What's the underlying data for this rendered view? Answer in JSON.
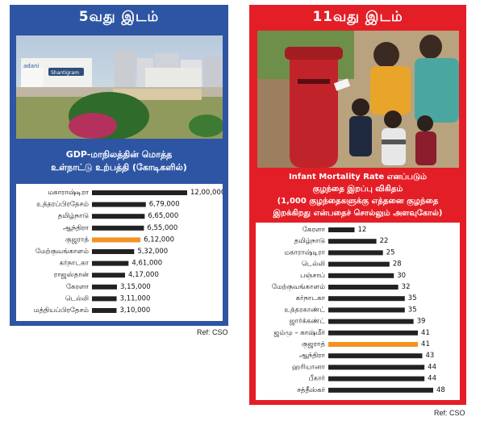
{
  "left": {
    "title": "5வது இடம்",
    "photo_sign": "adani",
    "photo_building_sign": "Shantigram",
    "subtitle_line1": "GDP-மாநிலத்தின் மொத்த",
    "subtitle_line2": "உள்நாட்டு உற்பத்தி (கோடிகளில்)",
    "ref": "Ref: CSO"
  },
  "right": {
    "title": "11வது இடம்",
    "subtitle_line1": "Infant Mortality Rate எனப்படும்",
    "subtitle_line2": "குழந்தை இறப்பு விகிதம்",
    "subtitle_line3": "(1,000 குழந்தைகளுக்கு எத்தனை குழந்தை",
    "subtitle_line4": "இறக்கிறது என்பதைச் சொல்லும் அளவுகோல்)",
    "ref": "Ref: CSO"
  },
  "colors": {
    "left_panel": "#2d55a3",
    "right_panel": "#e31e26",
    "bar": "#222222",
    "highlight_bar": "#f39223"
  },
  "chart_data": [
    {
      "type": "bar",
      "orientation": "horizontal",
      "categories": [
        "மகாராஷ்டிரா",
        "உத்தரப்பிரதேசம்",
        "தமிழ்நாடு",
        "ஆந்திரா",
        "குஜராத்",
        "மேற்குவங்காளம்",
        "கர்நாடகா",
        "ராஜஸ்தான்",
        "கேரளா",
        "டெல்லி",
        "மத்தியப்பிரதேசம்"
      ],
      "values": [
        1200000,
        679000,
        665000,
        655000,
        612000,
        532000,
        461000,
        417000,
        315000,
        311000,
        310000
      ],
      "value_labels": [
        "12,00,000",
        "6,79,000",
        "6,65,000",
        "6,55,000",
        "6,12,000",
        "5,32,000",
        "4,61,000",
        "4,17,000",
        "3,15,000",
        "3,11,000",
        "3,10,000"
      ],
      "highlight": "குஜராத்",
      "xlim": [
        0,
        1200000
      ]
    },
    {
      "type": "bar",
      "orientation": "horizontal",
      "categories": [
        "கேரளா",
        "தமிழ்நாடு",
        "மகாராஷ்டிரா",
        "டெல்லி",
        "பஞ்சாப்",
        "மேற்குவங்காளம்",
        "கர்நாடகா",
        "உத்தரகாண்ட்",
        "ஜார்க்கண்ட்",
        "ஜம்மு – காஷ்மீர்",
        "குஜராத்",
        "ஆந்திரா",
        "ஹரியானா",
        "பீகார்",
        "சத்தீஸ்கர்"
      ],
      "values": [
        12,
        22,
        25,
        28,
        30,
        32,
        35,
        35,
        39,
        41,
        41,
        43,
        44,
        44,
        48
      ],
      "value_labels": [
        "12",
        "22",
        "25",
        "28",
        "30",
        "32",
        "35",
        "35",
        "39",
        "41",
        "41",
        "43",
        "44",
        "44",
        "48"
      ],
      "highlight": "குஜராத்",
      "xlim": [
        0,
        48
      ]
    }
  ]
}
